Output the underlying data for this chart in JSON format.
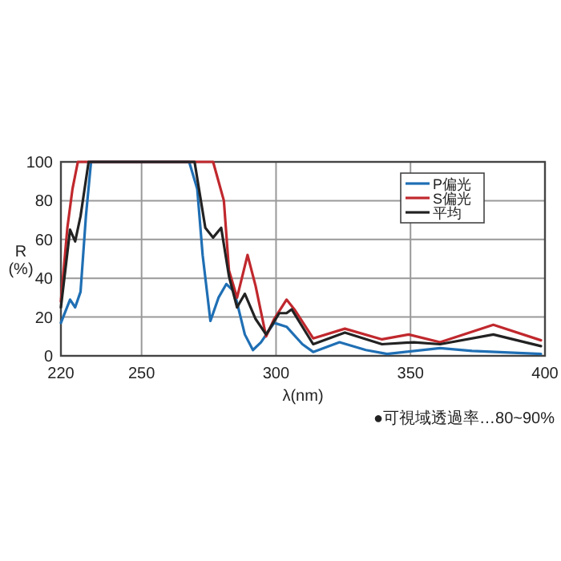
{
  "chart_data": {
    "type": "line",
    "xlabel": "λ(nm)",
    "ylabel": "R\n(%)",
    "xlim": [
      220,
      400
    ],
    "xticks": [
      220,
      250,
      300,
      350,
      400
    ],
    "ylim": [
      0,
      100
    ],
    "yticks": [
      0,
      20,
      40,
      60,
      80,
      100
    ],
    "grid": true,
    "legend": "top right",
    "line_style": "solid",
    "annotations": [
      "●可視域透過率…80~90%"
    ],
    "series": [
      {
        "name": "P偏光",
        "color": "#1f6fb4",
        "x": [
          220,
          223.4,
          225.3,
          227.3,
          229.3,
          231.2,
          267.7,
          270.7,
          272.7,
          275.6,
          278.6,
          281.5,
          284.5,
          288.4,
          291.4,
          294.4,
          299.3,
          303.9,
          309.8,
          313.8,
          323.6,
          333.4,
          341.3,
          361,
          372.9,
          398.5
        ],
        "values": [
          17,
          29,
          25,
          33,
          72,
          100,
          100,
          86,
          52,
          18,
          30,
          37,
          33,
          11,
          3,
          7,
          17,
          15,
          6,
          2,
          7,
          3,
          1,
          4,
          2.5,
          1
        ]
      },
      {
        "name": "S偏光",
        "color": "#c0282d",
        "x": [
          220,
          222.4,
          224.3,
          226.3,
          276.6,
          280.6,
          282.5,
          285.5,
          289.4,
          292.4,
          296.3,
          299.3,
          303.9,
          306.8,
          313.8,
          325.6,
          339.4,
          349.3,
          361,
          380.8,
          398.5
        ],
        "values": [
          28,
          66,
          86,
          100,
          100,
          80,
          44,
          30,
          52,
          36,
          10,
          19,
          29,
          24,
          9,
          14,
          8.5,
          11,
          7,
          16,
          8
        ]
      },
      {
        "name": "平均",
        "color": "#222222",
        "x": [
          220,
          223.4,
          225.3,
          227.3,
          230.3,
          269.7,
          273.7,
          276.6,
          279.6,
          282.5,
          285.5,
          288.4,
          292.4,
          296.3,
          301.2,
          303.9,
          305.8,
          313.8,
          325.6,
          339.4,
          351.2,
          361,
          380.8,
          398.5
        ],
        "values": [
          25,
          65,
          59,
          72,
          100,
          100,
          66,
          61,
          66,
          41,
          25,
          32,
          19,
          11,
          22,
          22,
          24,
          6,
          12,
          6,
          7,
          6,
          11,
          5
        ]
      }
    ]
  }
}
